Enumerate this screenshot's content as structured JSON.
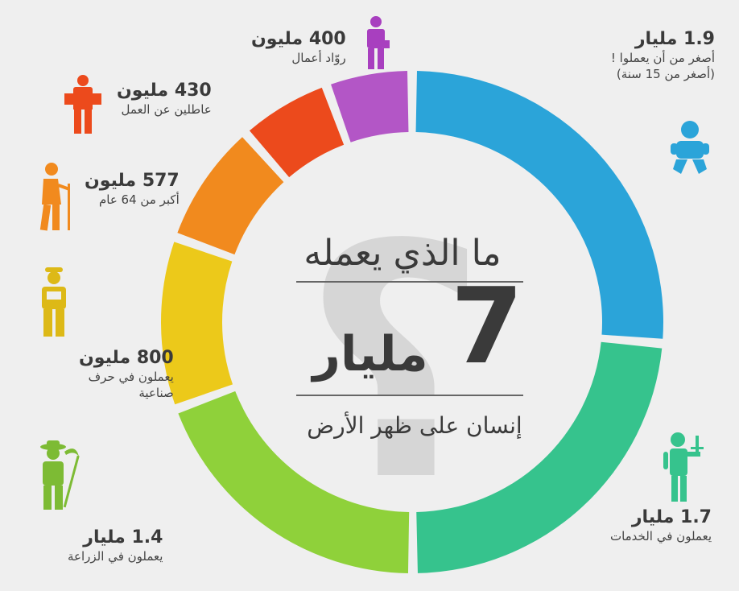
{
  "colors": {
    "background": "#efefef",
    "center_qmark": "#d6d6d6",
    "text": "#3a3a3a"
  },
  "center": {
    "title": "ما الذي يعمله",
    "number": "7",
    "unit": "مليار",
    "subtitle": "إنسان على ظهر الأرض",
    "mark": "؟"
  },
  "chart_data": {
    "type": "pie",
    "variant": "donut",
    "title": "ما الذي يعمله 7 مليار إنسان على ظهر الأرض",
    "unit": "مليون",
    "slices": [
      {
        "key": "children",
        "value": 1900,
        "value_label": "1.9 مليار",
        "label_lines": [
          "أصغر من أن يعملوا !",
          "(أصغر من 15 سنة)"
        ],
        "color": "#2ba4d9",
        "icon": "baby-icon"
      },
      {
        "key": "services",
        "value": 1700,
        "value_label": "1.7 مليار",
        "label_lines": [
          "يعملون في الخدمات"
        ],
        "color": "#36c38d",
        "icon": "waiter-icon"
      },
      {
        "key": "agriculture",
        "value": 1400,
        "value_label": "1.4 مليار",
        "label_lines": [
          "يعملون في الزراعة"
        ],
        "color": "#8fd13a",
        "icon": "farmer-icon"
      },
      {
        "key": "crafts",
        "value": 800,
        "value_label": "800 مليون",
        "label_lines": [
          "يعملون في حرف",
          "صناعية"
        ],
        "color": "#ecc91a",
        "icon": "worker-icon"
      },
      {
        "key": "elderly",
        "value": 577,
        "value_label": "577 مليون",
        "label_lines": [
          "أكبر من 64 عام"
        ],
        "color": "#f18a1e",
        "icon": "elderly-icon"
      },
      {
        "key": "unemployed",
        "value": 430,
        "value_label": "430 مليون",
        "label_lines": [
          "عاطلين عن العمل"
        ],
        "color": "#ec4a1c",
        "icon": "unemployed-icon"
      },
      {
        "key": "entrepreneurs",
        "value": 400,
        "value_label": "400 مليون",
        "label_lines": [
          "روّاد أعمال"
        ],
        "color": "#b356c6",
        "icon": "businessman-icon"
      }
    ]
  }
}
